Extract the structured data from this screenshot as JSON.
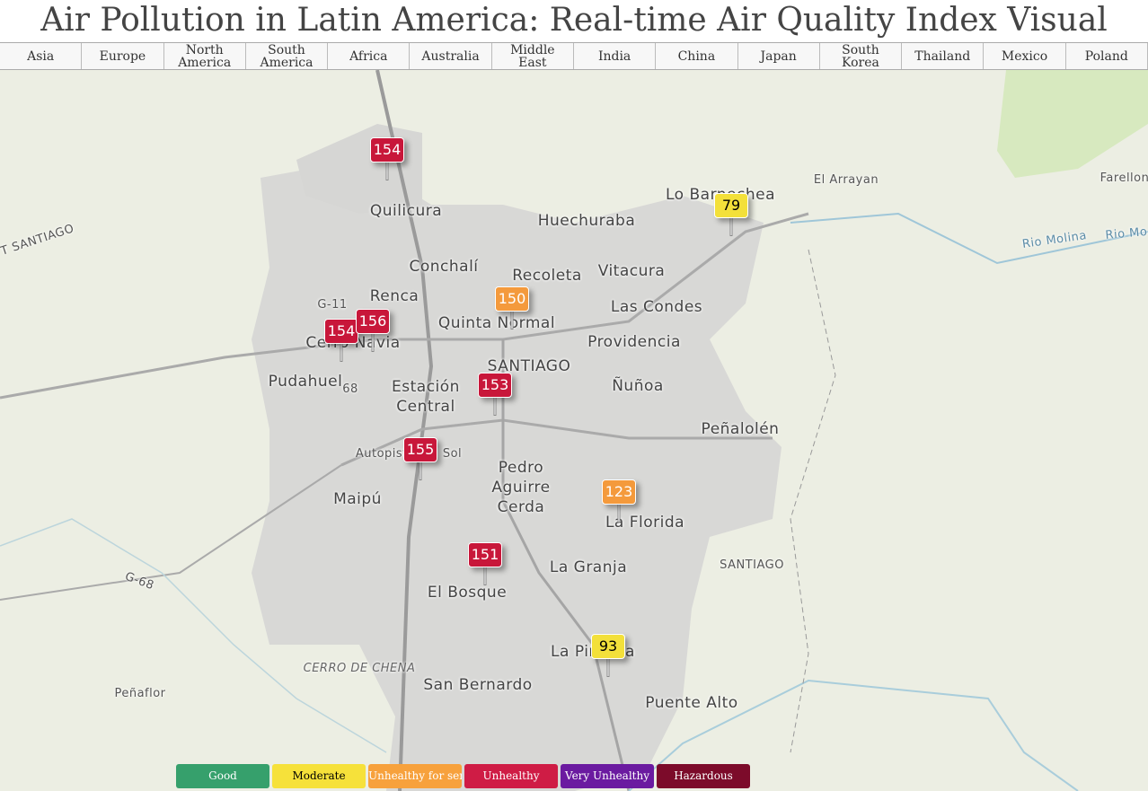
{
  "header": {
    "title": "Air Pollution in Latin America: Real-time Air Quality Index Visual Map"
  },
  "nav": [
    "Asia",
    "Europe",
    "North America",
    "South America",
    "Africa",
    "Australia",
    "Middle East",
    "India",
    "China",
    "Japan",
    "South Korea",
    "Thailand",
    "Mexico",
    "Poland"
  ],
  "map": {
    "labels": [
      "Quilicura",
      "Huechuraba",
      "Conchalí",
      "Recoleta",
      "Vitacura",
      "Renca",
      "Quinta Normal",
      "Las Condes",
      "Cerro Navia",
      "Providencia",
      "SANTIAGO",
      "Pudahuel",
      "Estación Central",
      "Ñuñoa",
      "Peñalolén",
      "Pedro Aguirre Cerda",
      "Maipú",
      "La Florida",
      "La Granja",
      "SANTIAGO",
      "El Bosque",
      "La Pintana",
      "San Bernardo",
      "Puente Alto",
      "Peñaflor",
      "CERRO DE CHENA",
      "Lo Barnechea",
      "El Arrayan",
      "Farellon",
      "Rio Molina",
      "Rio Mo",
      "T SANTIAGO",
      "Autopista del Sol",
      "G-11",
      "G-68",
      "68"
    ],
    "markers": [
      {
        "value": 154,
        "color": "#c8173a"
      },
      {
        "value": 79,
        "color": "#f3e03a"
      },
      {
        "value": 150,
        "color": "#f49a3c"
      },
      {
        "value": 154,
        "color": "#c8173a"
      },
      {
        "value": 156,
        "color": "#c8173a"
      },
      {
        "value": 153,
        "color": "#c8173a"
      },
      {
        "value": 155,
        "color": "#c8173a"
      },
      {
        "value": 123,
        "color": "#f49a3c"
      },
      {
        "value": 151,
        "color": "#c8173a"
      },
      {
        "value": 93,
        "color": "#f3e03a"
      }
    ]
  },
  "legend": [
    {
      "label": "Good",
      "color": "#36a06c"
    },
    {
      "label": "Moderate",
      "color": "#f6e13a"
    },
    {
      "label": "Unhealthy for sensitive groups",
      "color": "#f7a13c"
    },
    {
      "label": "Unhealthy",
      "color": "#cf1c45"
    },
    {
      "label": "Very Unhealthy",
      "color": "#6b1aa0"
    },
    {
      "label": "Hazardous",
      "color": "#7c0b2a"
    }
  ]
}
